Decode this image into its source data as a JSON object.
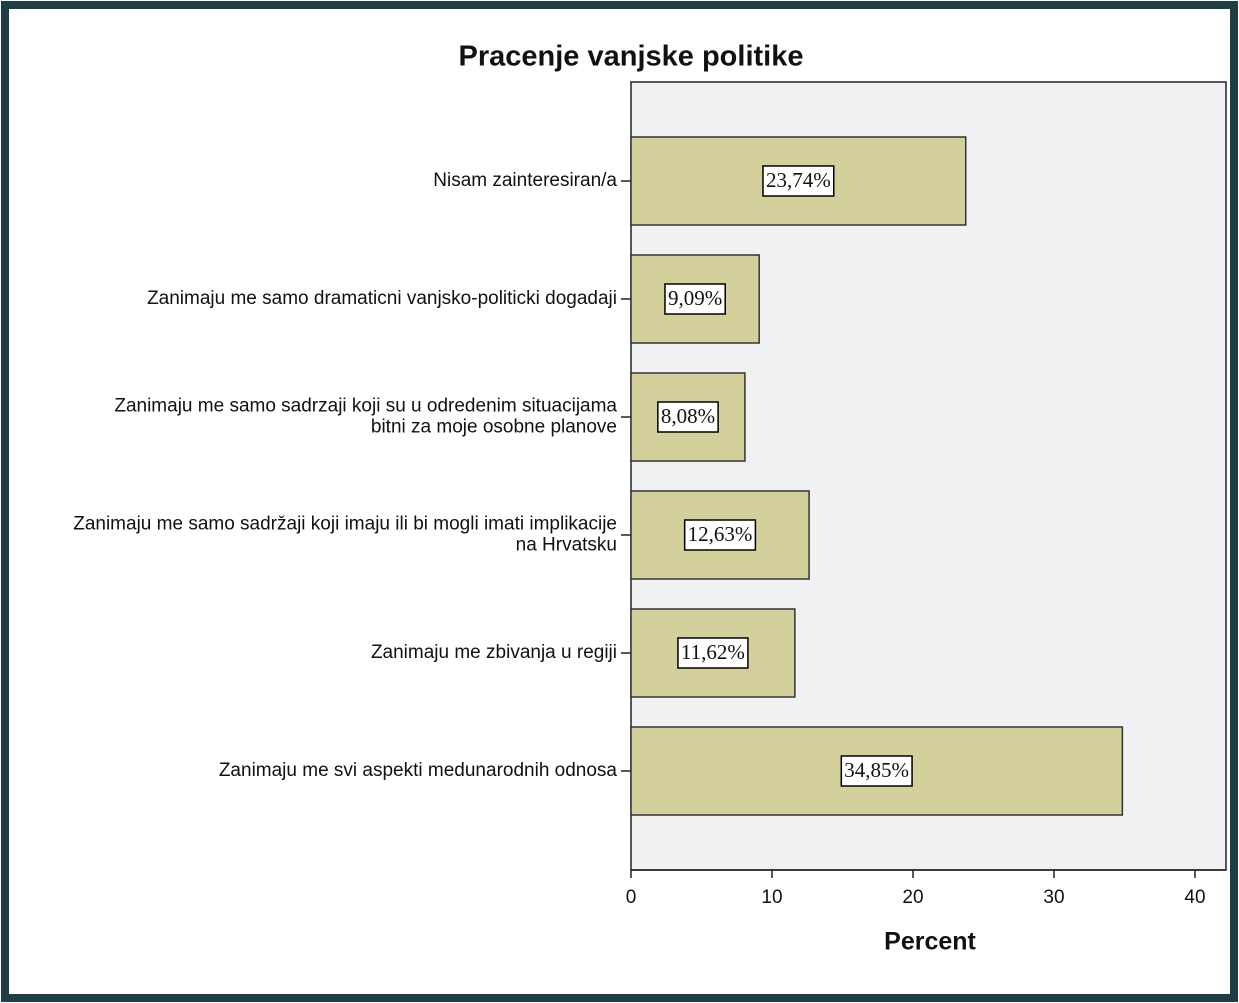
{
  "chart_data": {
    "type": "bar",
    "orientation": "horizontal",
    "title": "Pracenje vanjske politike",
    "x_label": "Percent",
    "categories": [
      "Nisam zainteresiran/a",
      "Zanimaju me samo dramaticni vanjsko-politicki dogadaji",
      "Zanimaju me samo sadrzaji koji su u odredenim situacijama\nbitni za moje osobne planove",
      "Zanimaju me samo sadržaji koji imaju ili bi mogli imati implikacije\nna Hrvatsku",
      "Zanimaju me zbivanja u regiji",
      "Zanimaju me svi aspekti medunarodnih odnosa"
    ],
    "values": [
      23.74,
      9.09,
      8.08,
      12.63,
      11.62,
      34.85
    ],
    "value_labels": [
      "23,74%",
      "9,09%",
      "8,08%",
      "12,63%",
      "11,62%",
      "34,85%"
    ],
    "color": "#d4d09b",
    "xlim": [
      0,
      42.2
    ],
    "xticks": [
      0,
      10,
      20,
      30,
      40
    ]
  }
}
